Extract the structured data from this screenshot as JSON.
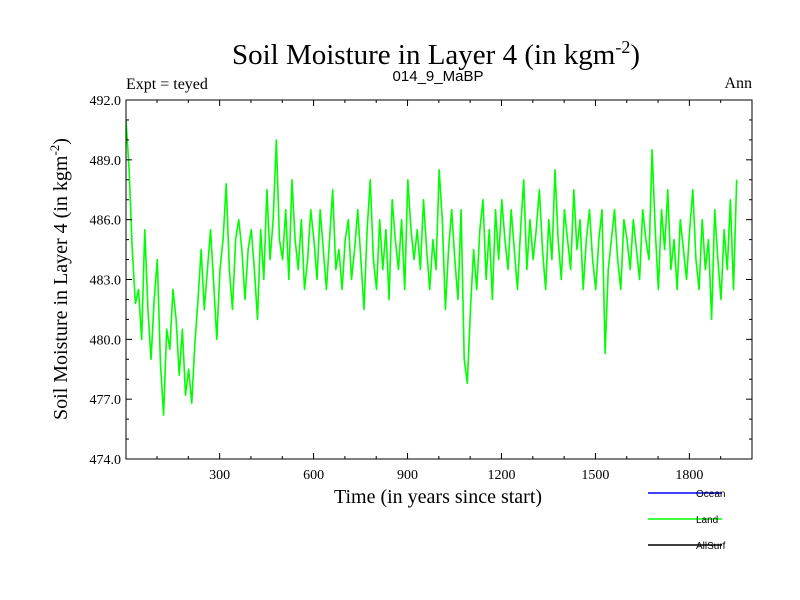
{
  "chart_data": {
    "type": "line",
    "title": "Soil Moisture in Layer 4 (in kgm",
    "title_sup": "-2",
    "title_close": ")",
    "subtitle_left": "Expt = teyed",
    "subtitle_center": "014_9_MaBP",
    "subtitle_right": "Ann",
    "xlabel": "Time (in years since start)",
    "ylabel": "Soil Moisture in Layer 4 (in kgm",
    "ylabel_sup": "-2",
    "ylabel_close": ")",
    "xlim": [
      1,
      2000
    ],
    "ylim": [
      474.0,
      492.0
    ],
    "x_ticks": [
      300,
      600,
      900,
      1200,
      1500,
      1800
    ],
    "x_tick_labels": [
      "300",
      "600",
      "900",
      "1200",
      "1500",
      "1800"
    ],
    "y_ticks": [
      474.0,
      477.0,
      480.0,
      483.0,
      486.0,
      489.0,
      492.0
    ],
    "y_tick_labels": [
      "474.0",
      "477.0",
      "480.0",
      "483.0",
      "486.0",
      "489.0",
      "492.0"
    ],
    "series": [
      {
        "name": "Land",
        "color": "#00ff00",
        "x_start": 1,
        "x_step": 10,
        "values": [
          491.0,
          488.5,
          484.5,
          481.8,
          482.5,
          480.0,
          485.5,
          481.5,
          479.0,
          482.0,
          484.0,
          478.8,
          476.2,
          480.5,
          479.5,
          482.5,
          481.0,
          478.2,
          480.5,
          477.2,
          478.5,
          476.8,
          479.8,
          482.0,
          484.5,
          481.5,
          483.5,
          485.5,
          482.8,
          480.0,
          483.5,
          485.0,
          487.8,
          483.5,
          481.5,
          485.0,
          486.0,
          484.5,
          482.0,
          484.5,
          485.5,
          483.5,
          481.0,
          485.5,
          483.0,
          487.5,
          484.0,
          486.0,
          490.0,
          485.0,
          484.0,
          486.5,
          483.0,
          488.0,
          485.0,
          483.5,
          486.0,
          482.5,
          484.0,
          486.5,
          485.0,
          483.0,
          486.5,
          484.5,
          482.5,
          485.0,
          487.5,
          483.5,
          484.5,
          482.5,
          485.0,
          486.0,
          483.0,
          484.5,
          486.5,
          484.0,
          481.5,
          485.5,
          488.0,
          484.0,
          482.5,
          486.0,
          483.5,
          485.5,
          482.0,
          487.0,
          485.0,
          483.5,
          486.0,
          482.5,
          488.0,
          485.5,
          484.0,
          485.5,
          483.5,
          487.0,
          484.5,
          482.5,
          485.0,
          483.5,
          488.5,
          486.0,
          481.5,
          484.5,
          486.5,
          484.0,
          482.0,
          486.5,
          479.0,
          477.8,
          481.5,
          484.5,
          482.5,
          485.5,
          487.0,
          483.0,
          485.5,
          482.0,
          486.5,
          484.0,
          487.0,
          485.0,
          483.5,
          486.5,
          484.5,
          482.5,
          485.5,
          488.0,
          483.5,
          486.0,
          484.0,
          485.5,
          487.5,
          484.5,
          482.5,
          486.0,
          484.0,
          488.5,
          485.0,
          483.0,
          486.5,
          485.0,
          483.5,
          487.5,
          484.5,
          486.0,
          482.5,
          485.0,
          486.5,
          484.0,
          482.5,
          485.0,
          486.5,
          479.3,
          483.5,
          485.0,
          486.5,
          484.0,
          482.5,
          486.0,
          485.0,
          483.5,
          486.0,
          484.5,
          483.0,
          486.5,
          485.0,
          484.0,
          489.5,
          485.5,
          482.5,
          486.5,
          484.5,
          487.5,
          483.5,
          485.0,
          482.5,
          486.0,
          484.5,
          483.0,
          485.5,
          487.5,
          484.0,
          482.5,
          486.0,
          483.5,
          485.0,
          481.0,
          486.5,
          484.0,
          482.0,
          485.5,
          483.5,
          487.0,
          482.5,
          488.0
        ]
      }
    ],
    "legend": [
      {
        "label": "Ocean",
        "color": "#0000ff"
      },
      {
        "label": "Land",
        "color": "#00ff00"
      },
      {
        "label": "AllSurf",
        "color": "#000000"
      }
    ],
    "legend_position": "bottom-right"
  }
}
